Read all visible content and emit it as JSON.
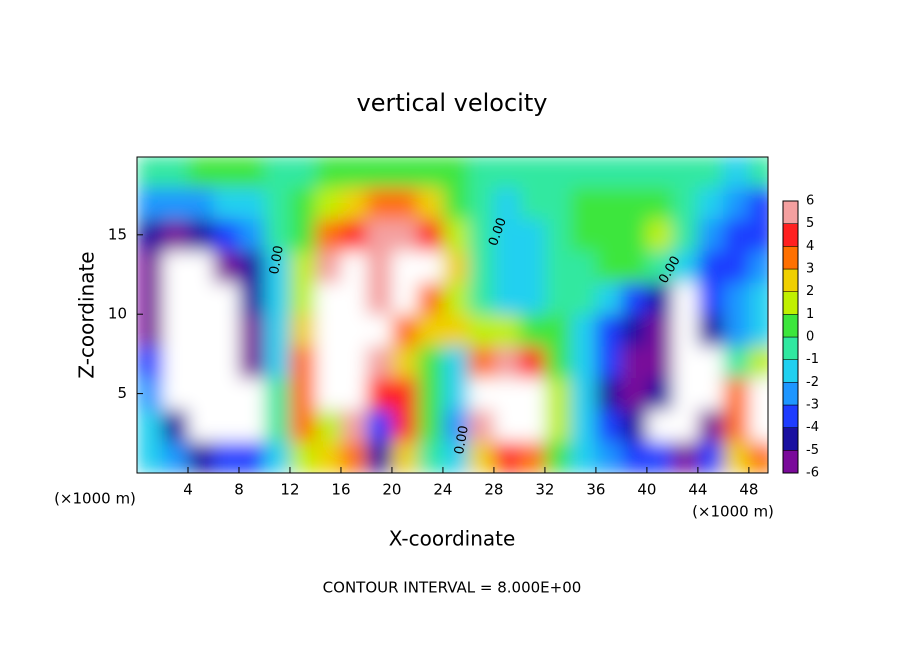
{
  "chart_data": {
    "type": "contour",
    "title": "vertical velocity",
    "x_label": "X-coordinate",
    "y_label": "Z-coordinate",
    "x_unit": "(×1000 m)",
    "footer": "CONTOUR INTERVAL = 8.000E+00",
    "contour_labels": [
      "0.00",
      "0.00",
      "0.00",
      "0.00"
    ],
    "x": [
      1,
      3,
      5,
      7,
      9,
      11,
      13,
      15,
      17,
      19,
      21,
      23,
      25,
      27,
      29,
      31,
      33,
      35,
      37,
      39,
      41,
      43,
      45,
      47,
      49
    ],
    "y": [
      1,
      3,
      5,
      7,
      9,
      11,
      13,
      15,
      17,
      19
    ],
    "z": [
      [
        -1,
        -2.5,
        -4,
        -3.5,
        -3,
        -1,
        2,
        3,
        4,
        -4,
        3,
        0,
        -1.5,
        3,
        5,
        4,
        1,
        -1,
        -2,
        -3,
        -3,
        -5,
        -3,
        3,
        4
      ],
      [
        -1.5,
        -4,
        -8,
        -6.5,
        -6.5,
        -0.5,
        4,
        2,
        6,
        -3,
        5,
        0.5,
        -2,
        6,
        9,
        7,
        2,
        -1,
        -3,
        -4.5,
        -6.5,
        -8,
        -6,
        4,
        8
      ],
      [
        -2,
        -6.5,
        -9,
        -7,
        -6.5,
        0,
        4,
        6.5,
        8,
        5,
        5,
        1,
        -1,
        6.5,
        9,
        7,
        1.5,
        -1.5,
        -4,
        -5,
        -4,
        -8,
        -7,
        4,
        8
      ],
      [
        -3,
        -7,
        -9,
        -7,
        -6,
        -1,
        4,
        8,
        9,
        6,
        3,
        1,
        -1,
        4,
        6,
        5,
        1,
        -1,
        -3,
        -5,
        -5,
        -7,
        -6.5,
        -0.5,
        2
      ],
      [
        -5,
        -8,
        -9,
        -7,
        -5,
        -1,
        3,
        8,
        9,
        7,
        4,
        3,
        2.5,
        2,
        1.5,
        1,
        0.5,
        -1,
        -3,
        -4.5,
        -5,
        -6.5,
        -4,
        -2,
        -1
      ],
      [
        -5,
        -8,
        -8,
        -6.5,
        -4.5,
        -1.5,
        2,
        7,
        8,
        6,
        7,
        4,
        2,
        0,
        -1,
        -1.5,
        0,
        0,
        -1,
        -3,
        -4,
        -6.5,
        -3,
        -2,
        -1.5
      ],
      [
        -5.5,
        -7,
        -7,
        -5,
        -4,
        -1,
        2,
        5.5,
        6.5,
        5.5,
        7,
        7,
        3,
        -0.5,
        -1.5,
        -1,
        0,
        0,
        0.5,
        0.5,
        0,
        -1.5,
        -3,
        -3,
        -2.5
      ],
      [
        -4.5,
        -5,
        -4,
        -3,
        -2.5,
        -0.5,
        1,
        4,
        5,
        5.5,
        5.5,
        5,
        2,
        -0.5,
        -1.5,
        -1,
        0,
        0.5,
        0.8,
        1,
        1.2,
        0,
        -2,
        -3,
        -3
      ],
      [
        -2.5,
        -2.5,
        -2,
        -1.5,
        -1,
        0,
        0.5,
        2,
        3,
        3.5,
        3.5,
        2.5,
        1,
        -0.5,
        -1,
        -0.5,
        0,
        0.3,
        0.5,
        0.5,
        0.5,
        0,
        -1,
        -2,
        -3
      ],
      [
        0,
        0,
        0.3,
        0.3,
        0.3,
        0,
        0,
        0.2,
        0.5,
        0.8,
        0.8,
        0.8,
        0.5,
        0,
        -0.5,
        -0.5,
        -0.3,
        0,
        0,
        0,
        0,
        -0.3,
        -0.5,
        -1,
        -0.5
      ]
    ],
    "xlim": [
      0,
      49.5
    ],
    "ylim": [
      0,
      19.9
    ],
    "xticks": [
      4,
      8,
      12,
      16,
      20,
      24,
      28,
      32,
      36,
      40,
      44,
      48
    ],
    "yticks": [
      5,
      10,
      15
    ],
    "colorbar": {
      "levels": [
        -6,
        -5,
        -4,
        -3,
        -2,
        -1,
        0,
        1,
        2,
        3,
        4,
        5,
        6
      ],
      "colors": [
        "#7a0a9a",
        "#1a10a0",
        "#1e3cff",
        "#1e96ff",
        "#20d0f0",
        "#30e8a0",
        "#3ce63c",
        "#c0f000",
        "#f0d000",
        "#ff7000",
        "#ff2020",
        "#f4a0a0"
      ],
      "out_of_range_color": "#ffffff"
    }
  }
}
